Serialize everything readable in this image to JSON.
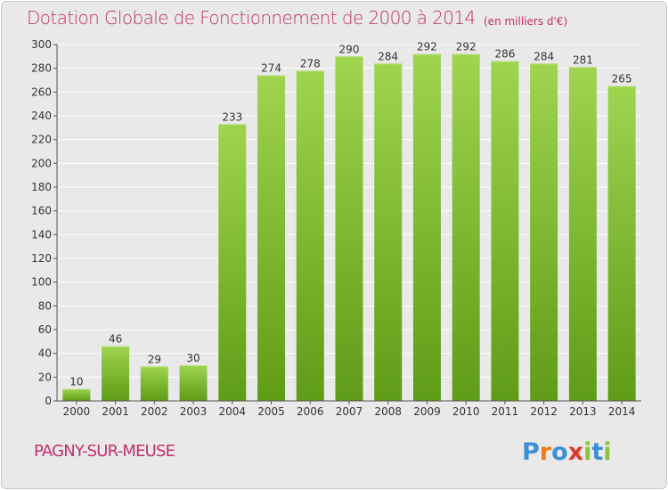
{
  "header": {
    "title": "Dotation Globale de Fonctionnement de 2000 à 2014",
    "unit": "(en milliers d'€)"
  },
  "footer": {
    "commune": "PAGNY-SUR-MEUSE",
    "logo": [
      "P",
      "r",
      "o",
      "x",
      "i",
      "t",
      "i"
    ],
    "logo_colors": [
      "#3b8fd6",
      "#f07b17",
      "#3b8fd6",
      "#e03a2c",
      "#8bc43f",
      "#3b8fd6",
      "#8bc43f"
    ]
  },
  "chart_data": {
    "type": "bar",
    "title": "Dotation Globale de Fonctionnement de 2000 à 2014",
    "subtitle": "(en milliers d'€)",
    "categories": [
      "2000",
      "2001",
      "2002",
      "2003",
      "2004",
      "2005",
      "2006",
      "2007",
      "2008",
      "2009",
      "2010",
      "2011",
      "2012",
      "2013",
      "2014"
    ],
    "values": [
      10,
      46,
      29,
      30,
      233,
      274,
      278,
      290,
      284,
      292,
      292,
      286,
      284,
      281,
      265
    ],
    "value_labels": [
      "10",
      "46",
      "29",
      "30",
      "233",
      "274",
      "278",
      "290",
      "284",
      "292",
      "292",
      "286",
      "284",
      "281",
      "265"
    ],
    "yticks": [
      "0",
      "20",
      "40",
      "60",
      "80",
      "100",
      "120",
      "140",
      "160",
      "180",
      "200",
      "220",
      "240",
      "260",
      "280",
      "300"
    ],
    "ylim": [
      0,
      300
    ],
    "grid": true,
    "colors": {
      "bar_top": "#9fd44f",
      "bar_bottom": "#5f9c17",
      "grid": "#ffffff",
      "axis": "#555555"
    }
  }
}
